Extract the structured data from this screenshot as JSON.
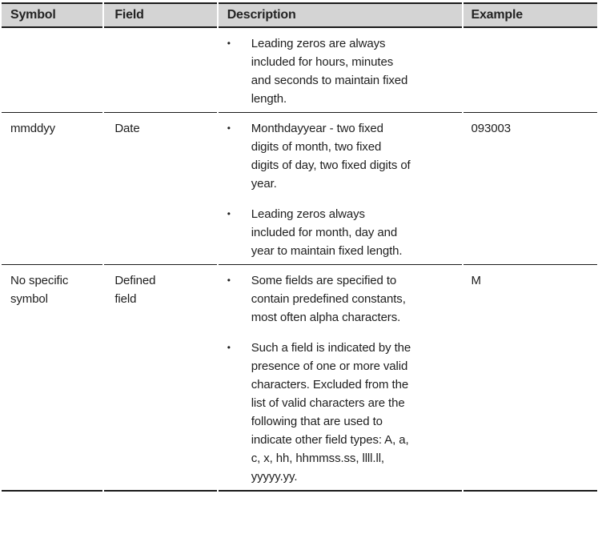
{
  "table": {
    "bullet_glyph": "•",
    "colors": {
      "header_bg": "#d4d4d4",
      "rule": "#1a1a1a",
      "text": "#1e1e1e"
    },
    "columns": {
      "symbol": "Symbol",
      "field": "Field",
      "description": "Description",
      "example": "Example"
    },
    "rows": [
      {
        "symbol": "",
        "field": "",
        "bullets": [
          "Leading zeros are always included for hours, minutes and seconds to maintain fixed length."
        ],
        "example": ""
      },
      {
        "symbol": "mmddyy",
        "field": "Date",
        "bullets": [
          "Monthdayyear - two fixed digits of month, two fixed digits of day, two fixed digits of year.",
          "Leading zeros always included for month, day and year to maintain fixed length."
        ],
        "example": "093003"
      },
      {
        "symbol": "No specific symbol",
        "field": "Defined field",
        "bullets": [
          "Some fields are specified to contain predefined con­stants, most often alpha characters.",
          "Such a field is indicated by the presence of one or more valid characters. Excluded from the list of valid characters are the following that are used to indicate other field types: A, a, c, x, hh, hhmmss.ss, llll.ll, yyyyy.yy."
        ],
        "example": "M"
      }
    ]
  }
}
